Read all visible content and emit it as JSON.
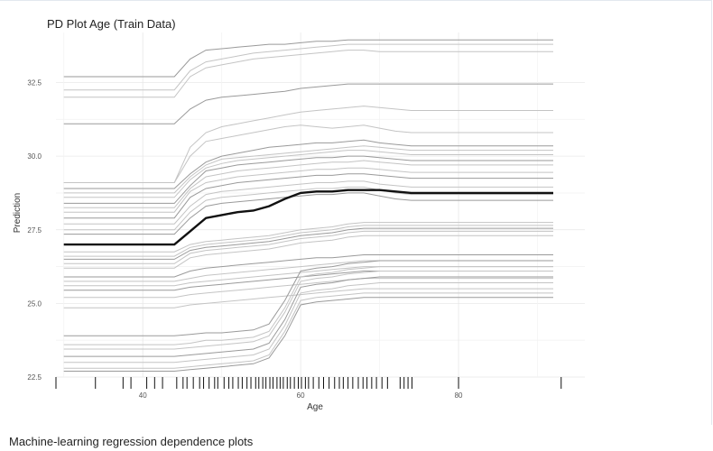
{
  "chart_data": {
    "type": "line",
    "title": "PD Plot Age (Train Data)",
    "xlabel": "Age",
    "ylabel": "Prediction",
    "xlim": [
      29,
      96
    ],
    "ylim": [
      22.5,
      34.2
    ],
    "xticks": [
      40,
      60,
      80
    ],
    "yticks": [
      22.5,
      25.0,
      27.5,
      30.0,
      32.5
    ],
    "ytick_labels": [
      "22.5",
      "25.0",
      "27.5",
      "30.0",
      "32.5"
    ],
    "grid": true,
    "legend": "none",
    "x": [
      30,
      44,
      46,
      48,
      50,
      52,
      54,
      56,
      58,
      60,
      62,
      64,
      66,
      68,
      70,
      72,
      74,
      76,
      80,
      84,
      88,
      92
    ],
    "average_series": {
      "values": [
        27.0,
        27.0,
        27.45,
        27.9,
        28.0,
        28.1,
        28.15,
        28.3,
        28.55,
        28.75,
        28.8,
        28.8,
        28.85,
        28.85,
        28.85,
        28.8,
        28.75,
        28.75,
        28.75,
        28.75,
        28.75,
        28.75
      ]
    },
    "ice_curves": [
      {
        "values": [
          32.7,
          32.7,
          33.3,
          33.6,
          33.65,
          33.7,
          33.75,
          33.8,
          33.8,
          33.85,
          33.9,
          33.9,
          33.95,
          33.95,
          33.95,
          33.95,
          33.95,
          33.95,
          33.95,
          33.95,
          33.95,
          33.95
        ]
      },
      {
        "values": [
          32.25,
          32.25,
          32.9,
          33.2,
          33.3,
          33.4,
          33.5,
          33.55,
          33.6,
          33.65,
          33.7,
          33.75,
          33.8,
          33.8,
          33.8,
          33.8,
          33.8,
          33.8,
          33.8,
          33.8,
          33.8,
          33.8
        ]
      },
      {
        "values": [
          32.0,
          32.0,
          32.7,
          33.0,
          33.1,
          33.2,
          33.3,
          33.35,
          33.4,
          33.45,
          33.5,
          33.55,
          33.6,
          33.6,
          33.55,
          33.55,
          33.55,
          33.55,
          33.55,
          33.55,
          33.55,
          33.55
        ]
      },
      {
        "values": [
          31.1,
          31.1,
          31.6,
          31.9,
          32.0,
          32.05,
          32.1,
          32.15,
          32.2,
          32.3,
          32.35,
          32.4,
          32.45,
          32.45,
          32.45,
          32.45,
          32.45,
          32.45,
          32.45,
          32.45,
          32.45,
          32.45
        ]
      },
      {
        "values": [
          29.1,
          29.1,
          30.3,
          30.8,
          31.0,
          31.1,
          31.2,
          31.3,
          31.4,
          31.5,
          31.55,
          31.6,
          31.65,
          31.7,
          31.65,
          31.6,
          31.55,
          31.55,
          31.55,
          31.55,
          31.55,
          31.55
        ]
      },
      {
        "values": [
          29.1,
          29.1,
          30.0,
          30.5,
          30.6,
          30.7,
          30.8,
          30.9,
          31.0,
          31.05,
          31.0,
          30.95,
          31.0,
          31.05,
          30.95,
          30.85,
          30.8,
          30.8,
          30.8,
          30.8,
          30.8,
          30.8
        ]
      },
      {
        "values": [
          28.9,
          28.9,
          29.4,
          29.8,
          30.0,
          30.1,
          30.2,
          30.3,
          30.35,
          30.4,
          30.45,
          30.45,
          30.5,
          30.55,
          30.45,
          30.4,
          30.35,
          30.35,
          30.35,
          30.35,
          30.35,
          30.35
        ]
      },
      {
        "values": [
          28.75,
          28.75,
          29.3,
          29.7,
          29.9,
          29.95,
          30.0,
          30.05,
          30.1,
          30.15,
          30.2,
          30.25,
          30.3,
          30.35,
          30.3,
          30.25,
          30.2,
          30.2,
          30.2,
          30.2,
          30.2,
          30.2
        ]
      },
      {
        "values": [
          28.6,
          28.6,
          29.2,
          29.6,
          29.75,
          29.85,
          29.9,
          29.95,
          30.0,
          30.05,
          30.1,
          30.15,
          30.2,
          30.2,
          30.15,
          30.1,
          30.05,
          30.05,
          30.05,
          30.05,
          30.05,
          30.05
        ]
      },
      {
        "values": [
          28.4,
          28.4,
          29.0,
          29.5,
          29.6,
          29.7,
          29.75,
          29.8,
          29.85,
          29.9,
          29.95,
          29.95,
          30.0,
          30.0,
          29.95,
          29.9,
          29.85,
          29.85,
          29.85,
          29.85,
          29.85,
          29.85
        ]
      },
      {
        "values": [
          28.25,
          28.25,
          28.9,
          29.3,
          29.4,
          29.5,
          29.55,
          29.6,
          29.65,
          29.7,
          29.75,
          29.8,
          29.8,
          29.85,
          29.8,
          29.75,
          29.7,
          29.7,
          29.7,
          29.7,
          29.7,
          29.7
        ]
      },
      {
        "values": [
          28.1,
          28.1,
          28.8,
          29.1,
          29.2,
          29.3,
          29.35,
          29.4,
          29.45,
          29.5,
          29.55,
          29.55,
          29.6,
          29.6,
          29.55,
          29.5,
          29.45,
          29.45,
          29.45,
          29.45,
          29.45,
          29.45
        ]
      },
      {
        "values": [
          27.9,
          27.9,
          28.6,
          28.9,
          29.0,
          29.1,
          29.15,
          29.2,
          29.25,
          29.3,
          29.35,
          29.35,
          29.4,
          29.4,
          29.35,
          29.3,
          29.25,
          29.25,
          29.25,
          29.25,
          29.25,
          29.25
        ]
      },
      {
        "values": [
          27.7,
          27.7,
          28.3,
          28.7,
          28.8,
          28.85,
          28.9,
          28.95,
          29.0,
          29.05,
          29.1,
          29.1,
          29.15,
          29.15,
          29.05,
          29.0,
          28.95,
          28.95,
          28.95,
          28.95,
          28.95,
          28.95
        ]
      },
      {
        "values": [
          27.5,
          27.5,
          28.1,
          28.5,
          28.6,
          28.65,
          28.7,
          28.75,
          28.8,
          28.85,
          28.9,
          28.9,
          28.95,
          28.95,
          28.85,
          28.75,
          28.7,
          28.7,
          28.7,
          28.7,
          28.7,
          28.7
        ]
      },
      {
        "values": [
          27.35,
          27.35,
          27.9,
          28.3,
          28.4,
          28.45,
          28.5,
          28.55,
          28.6,
          28.65,
          28.7,
          28.7,
          28.75,
          28.75,
          28.65,
          28.55,
          28.5,
          28.5,
          28.5,
          28.5,
          28.5,
          28.5
        ]
      },
      {
        "values": [
          26.75,
          26.75,
          27.0,
          27.1,
          27.15,
          27.2,
          27.25,
          27.3,
          27.4,
          27.5,
          27.55,
          27.6,
          27.7,
          27.75,
          27.75,
          27.75,
          27.75,
          27.75,
          27.75,
          27.75,
          27.75,
          27.75
        ]
      },
      {
        "values": [
          26.6,
          26.6,
          26.9,
          27.0,
          27.05,
          27.1,
          27.15,
          27.2,
          27.3,
          27.4,
          27.45,
          27.5,
          27.6,
          27.65,
          27.65,
          27.65,
          27.65,
          27.65,
          27.65,
          27.65,
          27.65,
          27.65
        ]
      },
      {
        "values": [
          26.5,
          26.5,
          26.8,
          26.9,
          26.95,
          27.0,
          27.05,
          27.1,
          27.2,
          27.3,
          27.35,
          27.4,
          27.5,
          27.55,
          27.55,
          27.55,
          27.55,
          27.55,
          27.55,
          27.55,
          27.55,
          27.55
        ]
      },
      {
        "values": [
          26.35,
          26.35,
          26.7,
          26.8,
          26.85,
          26.9,
          26.95,
          27.0,
          27.1,
          27.2,
          27.25,
          27.3,
          27.4,
          27.45,
          27.45,
          27.45,
          27.45,
          27.45,
          27.45,
          27.45,
          27.45,
          27.45
        ]
      },
      {
        "values": [
          26.2,
          26.2,
          26.55,
          26.65,
          26.7,
          26.75,
          26.8,
          26.85,
          26.95,
          27.05,
          27.1,
          27.15,
          27.25,
          27.3,
          27.3,
          27.3,
          27.3,
          27.3,
          27.3,
          27.3,
          27.3,
          27.3
        ]
      },
      {
        "values": [
          25.9,
          25.9,
          26.1,
          26.2,
          26.25,
          26.3,
          26.35,
          26.4,
          26.45,
          26.5,
          26.55,
          26.55,
          26.6,
          26.65,
          26.65,
          26.65,
          26.65,
          26.65,
          26.65,
          26.65,
          26.65,
          26.65
        ]
      },
      {
        "values": [
          25.75,
          25.75,
          25.85,
          25.95,
          26.0,
          26.05,
          26.1,
          26.15,
          26.2,
          26.25,
          26.3,
          26.35,
          26.4,
          26.45,
          26.45,
          26.45,
          26.45,
          26.45,
          26.45,
          26.45,
          26.45,
          26.45
        ]
      },
      {
        "values": [
          25.6,
          25.6,
          25.7,
          25.75,
          25.8,
          25.85,
          25.9,
          25.95,
          26.0,
          26.05,
          26.1,
          26.15,
          26.2,
          26.25,
          26.25,
          26.25,
          26.25,
          26.25,
          26.25,
          26.25,
          26.25,
          26.25
        ]
      },
      {
        "values": [
          25.45,
          25.45,
          25.55,
          25.6,
          25.65,
          25.7,
          25.75,
          25.8,
          25.85,
          25.9,
          25.95,
          26.0,
          26.05,
          26.1,
          26.1,
          26.1,
          26.1,
          26.1,
          26.1,
          26.1,
          26.1,
          26.1
        ]
      },
      {
        "values": [
          25.2,
          25.2,
          25.3,
          25.35,
          25.4,
          25.45,
          25.5,
          25.55,
          25.6,
          25.65,
          25.7,
          25.75,
          25.8,
          25.85,
          25.85,
          25.85,
          25.85,
          25.85,
          25.85,
          25.85,
          25.85,
          25.85
        ]
      },
      {
        "values": [
          24.85,
          24.85,
          24.95,
          25.0,
          25.05,
          25.1,
          25.15,
          25.2,
          25.25,
          25.3,
          25.35,
          25.4,
          25.45,
          25.5,
          25.5,
          25.5,
          25.5,
          25.5,
          25.5,
          25.5,
          25.5,
          25.5
        ]
      },
      {
        "values": [
          23.9,
          23.9,
          23.95,
          24.0,
          24.0,
          24.05,
          24.1,
          24.3,
          25.1,
          26.1,
          26.2,
          26.25,
          26.35,
          26.4,
          26.45,
          26.45,
          26.45,
          26.45,
          26.45,
          26.45,
          26.45,
          26.45
        ]
      },
      {
        "values": [
          23.6,
          23.6,
          23.65,
          23.75,
          23.75,
          23.8,
          23.85,
          24.05,
          24.85,
          25.9,
          26.0,
          26.05,
          26.15,
          26.2,
          26.25,
          26.25,
          26.25,
          26.25,
          26.25,
          26.25,
          26.25,
          26.25
        ]
      },
      {
        "values": [
          23.45,
          23.45,
          23.5,
          23.55,
          23.6,
          23.65,
          23.7,
          23.9,
          24.7,
          25.75,
          25.85,
          25.9,
          26.0,
          26.05,
          26.1,
          26.1,
          26.1,
          26.1,
          26.1,
          26.1,
          26.1,
          26.1
        ]
      },
      {
        "values": [
          23.2,
          23.2,
          23.25,
          23.3,
          23.35,
          23.4,
          23.45,
          23.65,
          24.45,
          25.55,
          25.65,
          25.7,
          25.8,
          25.85,
          25.9,
          25.9,
          25.9,
          25.9,
          25.9,
          25.9,
          25.9,
          25.9
        ]
      },
      {
        "values": [
          23.0,
          23.0,
          23.05,
          23.1,
          23.15,
          23.2,
          23.25,
          23.45,
          24.25,
          25.35,
          25.45,
          25.5,
          25.6,
          25.65,
          25.7,
          25.7,
          25.7,
          25.7,
          25.7,
          25.7,
          25.7,
          25.7
        ]
      },
      {
        "values": [
          22.8,
          22.8,
          22.85,
          22.9,
          22.95,
          23.0,
          23.05,
          23.25,
          24.05,
          25.1,
          25.2,
          25.25,
          25.3,
          25.35,
          25.35,
          25.35,
          25.35,
          25.35,
          25.35,
          25.35,
          25.35,
          25.35
        ]
      },
      {
        "values": [
          22.7,
          22.7,
          22.75,
          22.8,
          22.85,
          22.9,
          22.95,
          23.15,
          23.9,
          24.95,
          25.05,
          25.1,
          25.15,
          25.2,
          25.2,
          25.2,
          25.2,
          25.2,
          25.2,
          25.2,
          25.2,
          25.2
        ]
      }
    ],
    "rug_x": [
      29,
      34,
      37.5,
      38.5,
      40.5,
      41.5,
      42.5,
      44.3,
      45.1,
      45.6,
      46.4,
      47.2,
      47.7,
      48.4,
      49.1,
      49.5,
      50.3,
      50.9,
      51.4,
      52.1,
      52.6,
      53.2,
      53.7,
      54.3,
      54.7,
      55.2,
      55.6,
      56.1,
      56.5,
      57.0,
      57.4,
      57.8,
      58.3,
      58.7,
      59.2,
      59.7,
      60.1,
      60.6,
      61.0,
      61.6,
      62.3,
      62.9,
      63.6,
      64.3,
      64.9,
      65.4,
      66.0,
      66.6,
      67.3,
      67.9,
      68.4,
      69.0,
      69.6,
      70.3,
      71.0,
      72.6,
      73.1,
      73.6,
      74.1,
      80.0,
      93.0
    ]
  },
  "caption": "Machine-learning regression dependence plots"
}
